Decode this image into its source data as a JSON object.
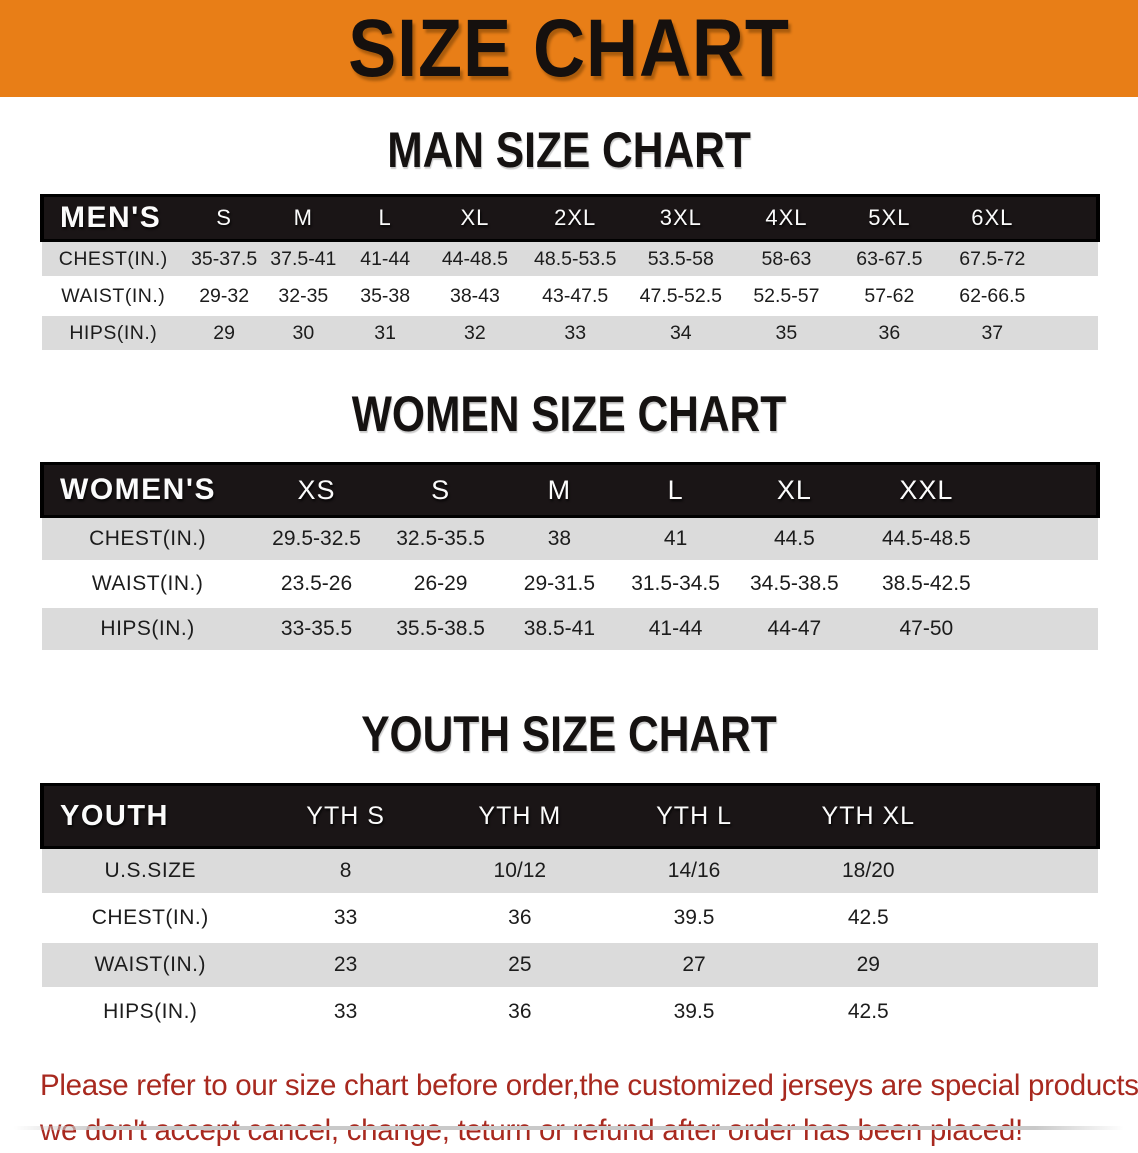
{
  "banner": {
    "title": "SIZE CHART",
    "bg_color": "#E87E17"
  },
  "sections": [
    {
      "heading": "MAN SIZE CHART",
      "table": {
        "header_label": "MEN'S",
        "sizes": [
          "S",
          "M",
          "L",
          "XL",
          "2XL",
          "3XL",
          "4XL",
          "5XL",
          "6XL"
        ],
        "rows": [
          {
            "label": "CHEST(IN.)",
            "values": [
              "35-37.5",
              "37.5-41",
              "41-44",
              "44-48.5",
              "48.5-53.5",
              "53.5-58",
              "58-63",
              "63-67.5",
              "67.5-72"
            ]
          },
          {
            "label": "WAIST(IN.)",
            "values": [
              "29-32",
              "32-35",
              "35-38",
              "38-43",
              "43-47.5",
              "47.5-52.5",
              "52.5-57",
              "57-62",
              "62-66.5"
            ]
          },
          {
            "label": "HIPS(IN.)",
            "values": [
              "29",
              "30",
              "31",
              "32",
              "33",
              "34",
              "35",
              "36",
              "37"
            ]
          }
        ]
      }
    },
    {
      "heading": "WOMEN SIZE CHART",
      "table": {
        "header_label": "WOMEN'S",
        "sizes": [
          "XS",
          "S",
          "M",
          "L",
          "XL",
          "XXL"
        ],
        "rows": [
          {
            "label": "CHEST(IN.)",
            "values": [
              "29.5-32.5",
              "32.5-35.5",
              "38",
              "41",
              "44.5",
              "44.5-48.5"
            ]
          },
          {
            "label": "WAIST(IN.)",
            "values": [
              "23.5-26",
              "26-29",
              "29-31.5",
              "31.5-34.5",
              "34.5-38.5",
              "38.5-42.5"
            ]
          },
          {
            "label": "HIPS(IN.)",
            "values": [
              "33-35.5",
              "35.5-38.5",
              "38.5-41",
              "41-44",
              "44-47",
              "47-50"
            ]
          }
        ]
      }
    },
    {
      "heading": "YOUTH SIZE CHART",
      "table": {
        "header_label": "YOUTH",
        "sizes": [
          "YTH S",
          "YTH M",
          "YTH L",
          "YTH XL"
        ],
        "rows": [
          {
            "label": "U.S.SIZE",
            "values": [
              "8",
              "10/12",
              "14/16",
              "18/20"
            ]
          },
          {
            "label": "CHEST(IN.)",
            "values": [
              "33",
              "36",
              "39.5",
              "42.5"
            ]
          },
          {
            "label": "WAIST(IN.)",
            "values": [
              "23",
              "25",
              "27",
              "29"
            ]
          },
          {
            "label": "HIPS(IN.)",
            "values": [
              "33",
              "36",
              "39.5",
              "42.5"
            ]
          }
        ]
      }
    }
  ],
  "disclaimer": {
    "line1": "Please refer to our size chart before order,the customized jerseys are special products,",
    "line2": "we don't accept cancel, change, teturn or refund after order has been placed!",
    "text_color": "#A8291F"
  },
  "colors": {
    "banner_bg": "#E87E17",
    "header_band_bg": "#1A1516",
    "shaded_row_bg": "#DBDBDB",
    "disclaimer_text": "#A8291F"
  }
}
